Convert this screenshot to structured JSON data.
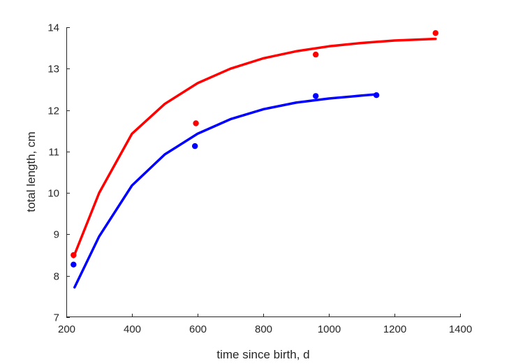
{
  "chart_data": {
    "type": "scatter",
    "title": "",
    "xlabel": "time since birth, d",
    "ylabel": "total length, cm",
    "xlim": [
      200,
      1400
    ],
    "ylim": [
      7,
      14
    ],
    "xticks": [
      200,
      400,
      600,
      800,
      1000,
      1200,
      1400
    ],
    "yticks": [
      7,
      8,
      9,
      10,
      11,
      12,
      13,
      14
    ],
    "grid": false,
    "series": [
      {
        "color": "#ff0000",
        "points": [
          {
            "x": 222,
            "y": 8.5
          },
          {
            "x": 595,
            "y": 11.68
          },
          {
            "x": 960,
            "y": 13.34
          },
          {
            "x": 1325,
            "y": 13.86
          }
        ],
        "fit": [
          {
            "x": 222,
            "y": 8.45
          },
          {
            "x": 300,
            "y": 10.0
          },
          {
            "x": 400,
            "y": 11.43
          },
          {
            "x": 500,
            "y": 12.15
          },
          {
            "x": 600,
            "y": 12.65
          },
          {
            "x": 700,
            "y": 13.0
          },
          {
            "x": 800,
            "y": 13.25
          },
          {
            "x": 900,
            "y": 13.42
          },
          {
            "x": 1000,
            "y": 13.54
          },
          {
            "x": 1100,
            "y": 13.62
          },
          {
            "x": 1200,
            "y": 13.68
          },
          {
            "x": 1325,
            "y": 13.72
          }
        ]
      },
      {
        "color": "#0000ff",
        "points": [
          {
            "x": 222,
            "y": 8.27
          },
          {
            "x": 592,
            "y": 11.13
          },
          {
            "x": 960,
            "y": 12.34
          },
          {
            "x": 1145,
            "y": 12.36
          }
        ],
        "fit": [
          {
            "x": 225,
            "y": 7.72
          },
          {
            "x": 300,
            "y": 8.95
          },
          {
            "x": 400,
            "y": 10.18
          },
          {
            "x": 500,
            "y": 10.93
          },
          {
            "x": 600,
            "y": 11.43
          },
          {
            "x": 700,
            "y": 11.78
          },
          {
            "x": 800,
            "y": 12.02
          },
          {
            "x": 900,
            "y": 12.18
          },
          {
            "x": 1000,
            "y": 12.28
          },
          {
            "x": 1100,
            "y": 12.35
          },
          {
            "x": 1145,
            "y": 12.38
          }
        ]
      }
    ]
  }
}
